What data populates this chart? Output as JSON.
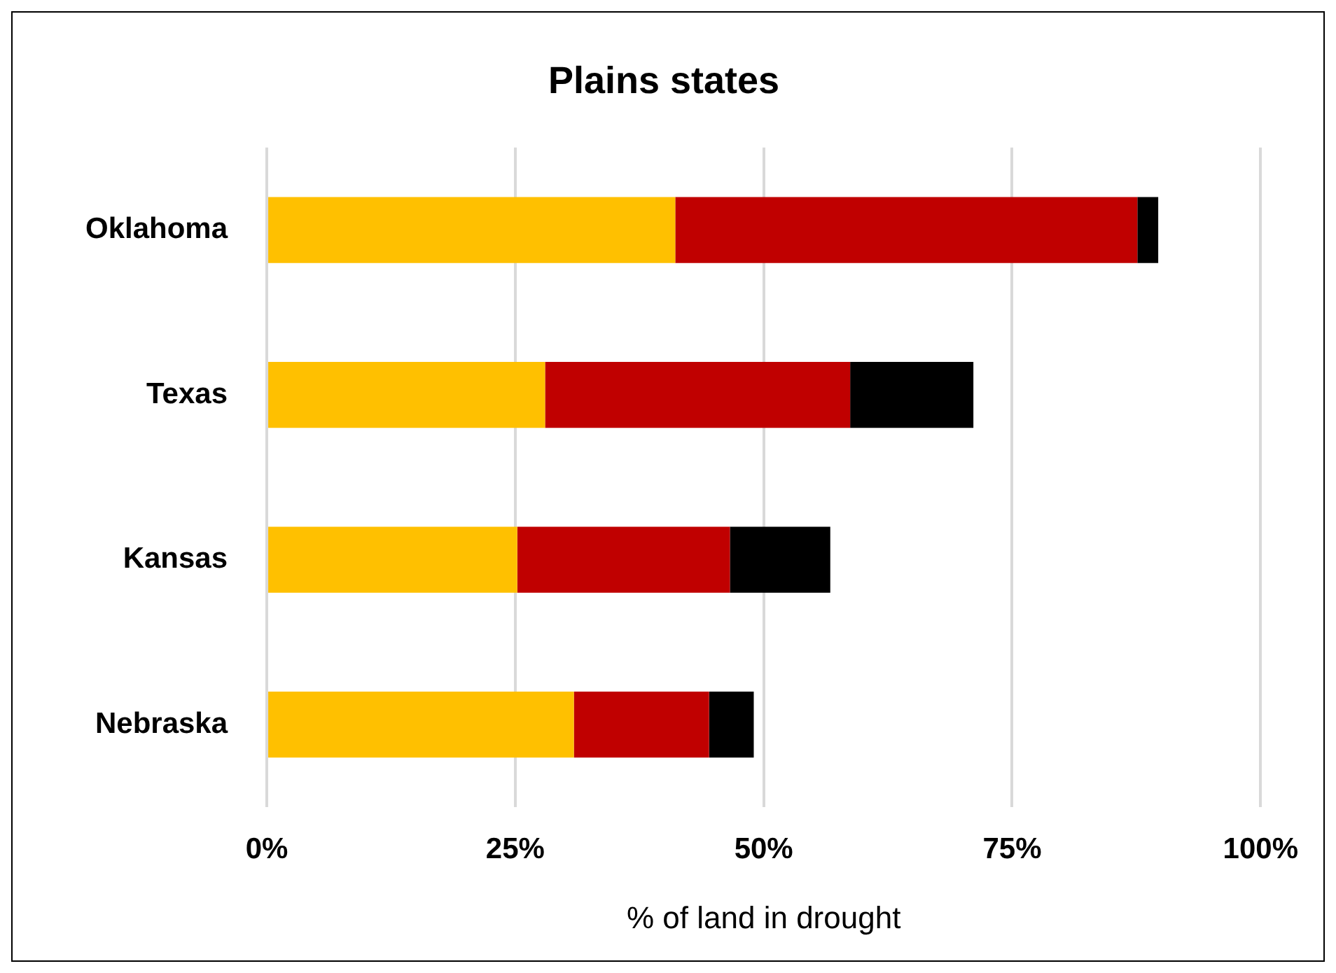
{
  "chart_data": {
    "type": "bar",
    "title": "Plains states",
    "xlabel": "% of land in drought",
    "orientation": "horizontal",
    "stacked": true,
    "categories": [
      "Oklahoma",
      "Texas",
      "Kansas",
      "Nebraska"
    ],
    "series": [
      {
        "color": "#ffc000",
        "values": [
          41.1,
          28.0,
          25.2,
          30.9
        ]
      },
      {
        "color": "#c00000",
        "values": [
          46.5,
          30.7,
          21.4,
          13.6
        ]
      },
      {
        "color": "#000000",
        "values": [
          2.1,
          12.4,
          10.1,
          4.5
        ]
      }
    ],
    "xlim": [
      0,
      100
    ],
    "xticks": [
      {
        "value": 0,
        "label": "0%"
      },
      {
        "value": 25,
        "label": "25%"
      },
      {
        "value": 50,
        "label": "50%"
      },
      {
        "value": 75,
        "label": "75%"
      },
      {
        "value": 100,
        "label": "100%"
      }
    ],
    "grid": "x",
    "legend": false
  }
}
